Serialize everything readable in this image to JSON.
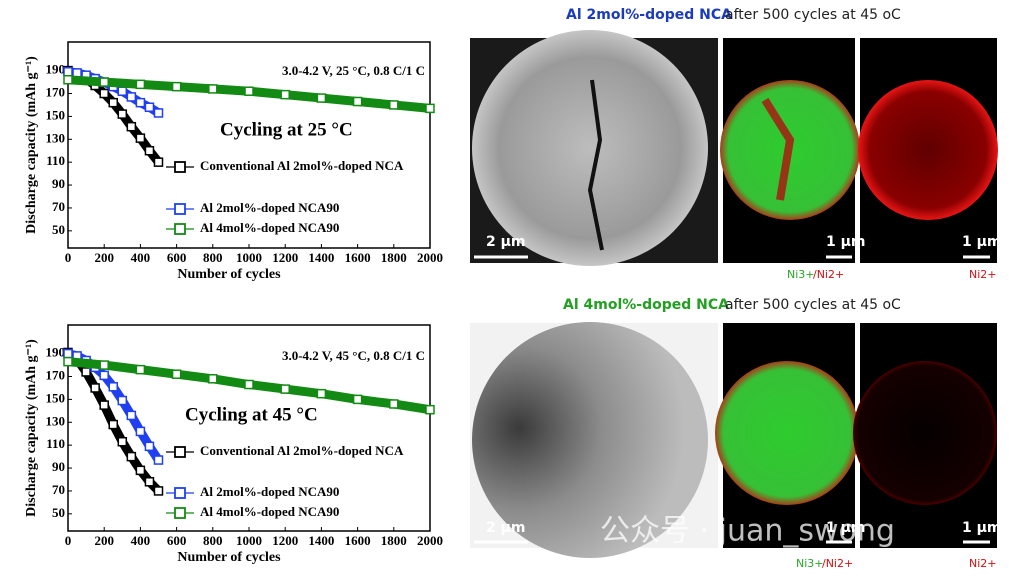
{
  "chart_data": [
    {
      "type": "line",
      "condition": "3.0-4.2 V, 25 °C, 0.8 C/1 C",
      "title": "Cycling at 25 °C",
      "xlabel": "Number of cycles",
      "ylabel": "Discharge capacity (mAh g⁻¹)",
      "xlim": [
        0,
        2000
      ],
      "xticks": [
        0,
        200,
        400,
        600,
        800,
        1000,
        1200,
        1400,
        1600,
        1800,
        2000
      ],
      "ylim": [
        35,
        215
      ],
      "yticks": [
        50,
        70,
        90,
        110,
        130,
        150,
        170,
        190
      ],
      "series": [
        {
          "name": "Conventional Al 2mol%-doped NCA",
          "color": "#000000",
          "x": [
            0,
            50,
            100,
            150,
            200,
            250,
            300,
            350,
            400,
            450,
            500
          ],
          "values": [
            190,
            187,
            183,
            177,
            170,
            162,
            152,
            141,
            131,
            120,
            110
          ]
        },
        {
          "name": "Al 2mol%-doped NCA90",
          "color": "#1f3ff0",
          "x": [
            0,
            50,
            100,
            150,
            200,
            250,
            300,
            350,
            400,
            450,
            500
          ],
          "values": [
            189,
            188,
            186,
            183,
            180,
            176,
            172,
            167,
            162,
            158,
            153
          ]
        },
        {
          "name": "Al 4mol%-doped NCA90",
          "color": "#138a13",
          "x": [
            0,
            200,
            400,
            600,
            800,
            1000,
            1200,
            1400,
            1600,
            1800,
            2000
          ],
          "values": [
            182,
            180,
            178,
            176,
            174,
            172,
            169,
            166,
            163,
            160,
            157
          ]
        }
      ]
    },
    {
      "type": "line",
      "condition": "3.0-4.2 V, 45 °C, 0.8 C/1 C",
      "title": "Cycling at 45 °C",
      "xlabel": "Number of cycles",
      "ylabel": "Discharge capacity (mAh g⁻¹)",
      "xlim": [
        0,
        2000
      ],
      "xticks": [
        0,
        200,
        400,
        600,
        800,
        1000,
        1200,
        1400,
        1600,
        1800,
        2000
      ],
      "ylim": [
        35,
        215
      ],
      "yticks": [
        50,
        70,
        90,
        110,
        130,
        150,
        170,
        190
      ],
      "series": [
        {
          "name": "Conventional Al 2mol%-doped NCA",
          "color": "#000000",
          "x": [
            0,
            50,
            100,
            150,
            200,
            250,
            300,
            350,
            400,
            450,
            500
          ],
          "values": [
            191,
            185,
            174,
            160,
            145,
            128,
            113,
            100,
            88,
            78,
            70
          ]
        },
        {
          "name": "Al 2mol%-doped NCA90",
          "color": "#1f3ff0",
          "x": [
            0,
            50,
            100,
            150,
            200,
            250,
            300,
            350,
            400,
            450,
            500
          ],
          "values": [
            190,
            188,
            184,
            178,
            171,
            161,
            149,
            136,
            122,
            109,
            97
          ]
        },
        {
          "name": "Al 4mol%-doped NCA90",
          "color": "#138a13",
          "x": [
            0,
            200,
            400,
            600,
            800,
            1000,
            1200,
            1400,
            1600,
            1800,
            2000
          ],
          "values": [
            183,
            180,
            176,
            172,
            168,
            163,
            159,
            155,
            150,
            146,
            141
          ]
        }
      ]
    }
  ],
  "panels": [
    {
      "title_sample": "Al 2mol%-doped NCA",
      "title_rest": "after 500 cycles at 45 oC",
      "scale_sem": "2 μm",
      "scale_map": "1 μm",
      "scale_ni2": "1 μm",
      "map_label_a": "Ni3+",
      "map_label_b": "/Ni2+",
      "ni2_label": "Ni2+"
    },
    {
      "title_sample": "Al 4mol%-doped NCA",
      "title_rest": "after 500 cycles at 45 oC",
      "scale_sem": "2 μm",
      "scale_map": "1 μm",
      "scale_ni2": "1 μm",
      "map_label_a": "Ni3+",
      "map_label_b": "/Ni2+",
      "ni2_label": "Ni2+"
    }
  ],
  "watermark": "公众号 · juan_swong"
}
